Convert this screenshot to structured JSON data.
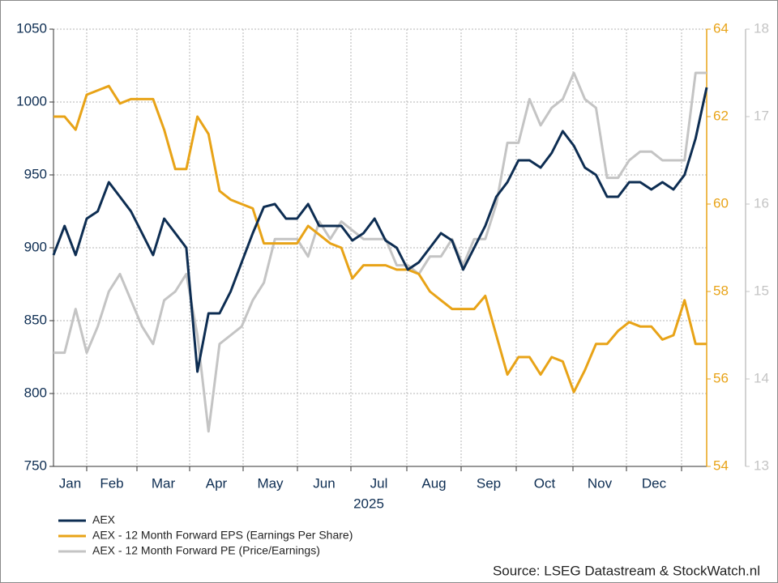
{
  "chart_data": {
    "type": "line",
    "months": [
      "Jan",
      "Feb",
      "Mar",
      "Apr",
      "May",
      "Jun",
      "Jul",
      "Aug",
      "Sep",
      "Oct",
      "Nov",
      "Dec"
    ],
    "x_label": "2025",
    "ylim": [
      750,
      1050
    ],
    "yticks": [
      750,
      800,
      850,
      900,
      950,
      1000,
      1050
    ],
    "y_color": "#0d2d52",
    "y2lim": [
      54,
      64
    ],
    "y2ticks": [
      54,
      56,
      58,
      60,
      62,
      64
    ],
    "y2_color": "#e8a317",
    "y3lim": [
      13,
      18
    ],
    "y3ticks": [
      13,
      14,
      15,
      16,
      17,
      18
    ],
    "y3_color": "#c4c4c4",
    "grid": true,
    "legend": "bottom-left",
    "source": "Source: LSEG Datastream & StockWatch.nl",
    "series": [
      {
        "name": "AEX",
        "color": "#0d2d52",
        "axis": "y",
        "values": [
          895,
          915,
          895,
          920,
          925,
          945,
          935,
          925,
          910,
          895,
          920,
          910,
          900,
          815,
          855,
          855,
          870,
          890,
          910,
          928,
          930,
          920,
          920,
          930,
          915,
          915,
          915,
          905,
          910,
          920,
          905,
          900,
          885,
          890,
          900,
          910,
          905,
          885,
          900,
          915,
          935,
          945,
          960,
          960,
          955,
          965,
          980,
          970,
          955,
          950,
          935,
          935,
          945,
          945,
          940,
          945,
          940,
          950,
          975,
          1010
        ]
      },
      {
        "name": "AEX - 12 Month Forward EPS (Earnings Per Share)",
        "color": "#e8a317",
        "axis": "y2",
        "values": [
          62.0,
          62.0,
          61.7,
          62.5,
          62.6,
          62.7,
          62.3,
          62.4,
          62.4,
          62.4,
          61.7,
          60.8,
          60.8,
          62.0,
          61.6,
          60.3,
          60.1,
          60.0,
          59.9,
          59.1,
          59.1,
          59.1,
          59.1,
          59.5,
          59.3,
          59.1,
          59.0,
          58.3,
          58.6,
          58.6,
          58.6,
          58.5,
          58.5,
          58.4,
          58.0,
          57.8,
          57.6,
          57.6,
          57.6,
          57.9,
          57.0,
          56.1,
          56.5,
          56.5,
          56.1,
          56.5,
          56.4,
          55.7,
          56.2,
          56.8,
          56.8,
          57.1,
          57.3,
          57.2,
          57.2,
          56.9,
          57.0,
          57.8,
          56.8,
          56.8
        ]
      },
      {
        "name": "AEX - 12 Month Forward PE (Price/Earnings)",
        "color": "#c4c4c4",
        "axis": "y3",
        "values": [
          14.3,
          14.3,
          14.8,
          14.3,
          14.6,
          15.0,
          15.2,
          14.9,
          14.6,
          14.4,
          14.9,
          15.0,
          15.2,
          14.5,
          13.4,
          14.4,
          14.5,
          14.6,
          14.9,
          15.1,
          15.6,
          15.6,
          15.6,
          15.4,
          15.8,
          15.6,
          15.8,
          15.7,
          15.6,
          15.6,
          15.6,
          15.3,
          15.3,
          15.2,
          15.4,
          15.4,
          15.6,
          15.3,
          15.6,
          15.6,
          16.0,
          16.7,
          16.7,
          17.2,
          16.9,
          17.1,
          17.2,
          17.5,
          17.2,
          17.1,
          16.3,
          16.3,
          16.5,
          16.6,
          16.6,
          16.5,
          16.5,
          16.5,
          17.5,
          17.5
        ]
      }
    ]
  }
}
